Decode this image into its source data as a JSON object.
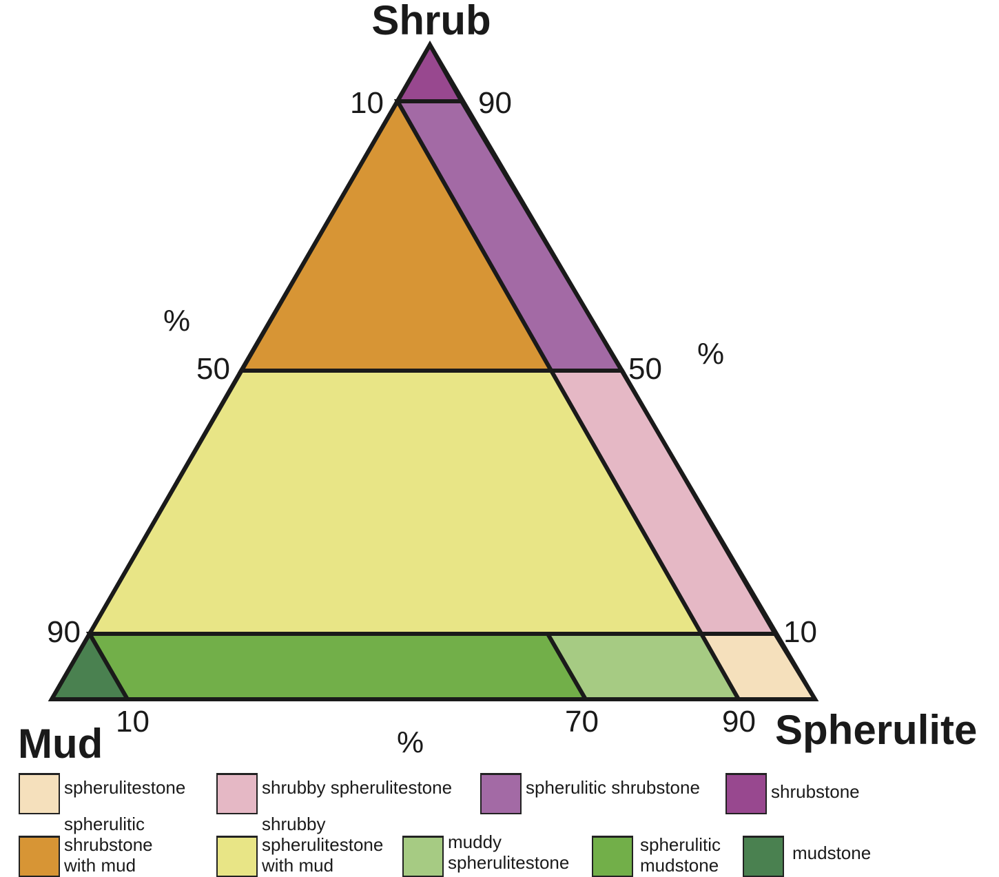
{
  "vertices": {
    "top": "Shrub",
    "left": "Mud",
    "right": "Spherulite"
  },
  "ticks": {
    "left_10": "10",
    "right_90": "90",
    "left_50": "50",
    "right_50": "50",
    "left_90": "90",
    "right_10": "10",
    "bottom_10": "10",
    "bottom_70": "70",
    "bottom_90": "90",
    "pct_left": "%",
    "pct_right": "%",
    "pct_bottom": "%"
  },
  "fields": [
    {
      "name": "spherulitestone",
      "color": "#f5e0bc"
    },
    {
      "name": "shrubby spherulitestone",
      "color": "#e5b8c5"
    },
    {
      "name": "spherulitic shrubstone",
      "color": "#a36aa5"
    },
    {
      "name": "shrubstone",
      "color": "#98488f"
    },
    {
      "name": "spherulitic shrubstone with mud",
      "color": "#d79535"
    },
    {
      "name": "shrubby spherulitestone with mud",
      "color": "#e8e586"
    },
    {
      "name": "muddy spherulitestone",
      "color": "#a6cb83"
    },
    {
      "name": "spherulitic mudstone",
      "color": "#72af49"
    },
    {
      "name": "mudstone",
      "color": "#4a8150"
    }
  ],
  "legend": [
    "spherulitestone",
    "shrubby spherulitestone",
    "spherulitic shrubstone",
    "shrubstone",
    "spherulitic\nshrubstone\nwith mud",
    "shrubby\nspherulitestone\nwith mud",
    "muddy\nspherulitestone",
    "spherulitic\nmudstone",
    "mudstone"
  ]
}
